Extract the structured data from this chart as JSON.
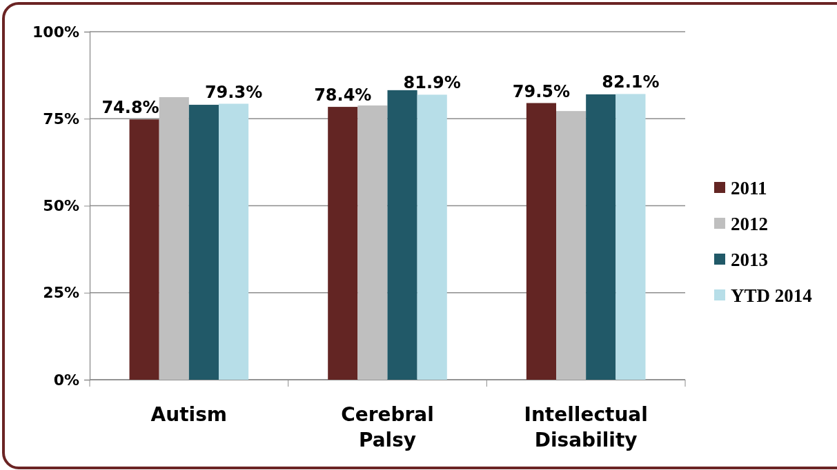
{
  "chart_data": {
    "type": "bar",
    "categories": [
      "Autism",
      "Cerebral Palsy",
      "Intellectual Disability"
    ],
    "series": [
      {
        "name": "2011",
        "color": "#632523",
        "values": [
          74.8,
          78.4,
          79.5
        ],
        "value_labels": [
          "74.8%",
          "78.4%",
          "79.5%"
        ]
      },
      {
        "name": "2012",
        "color": "#bfbfbf",
        "values": [
          81.2,
          78.8,
          77.2
        ],
        "value_labels": [
          null,
          null,
          null
        ]
      },
      {
        "name": "2013",
        "color": "#215968",
        "values": [
          79.0,
          83.2,
          82.0
        ],
        "value_labels": [
          null,
          null,
          null
        ]
      },
      {
        "name": "YTD 2014",
        "color": "#b7dee8",
        "values": [
          79.3,
          81.9,
          82.1
        ],
        "value_labels": [
          "79.3%",
          "81.9%",
          "82.1%"
        ]
      }
    ],
    "ylim": [
      0,
      100
    ],
    "yticks": [
      {
        "value": 0,
        "label": "0%"
      },
      {
        "value": 25,
        "label": "25%"
      },
      {
        "value": 50,
        "label": "50%"
      },
      {
        "value": 75,
        "label": "75%"
      },
      {
        "value": 100,
        "label": "100%"
      }
    ],
    "grid": "y",
    "legend": "right"
  }
}
